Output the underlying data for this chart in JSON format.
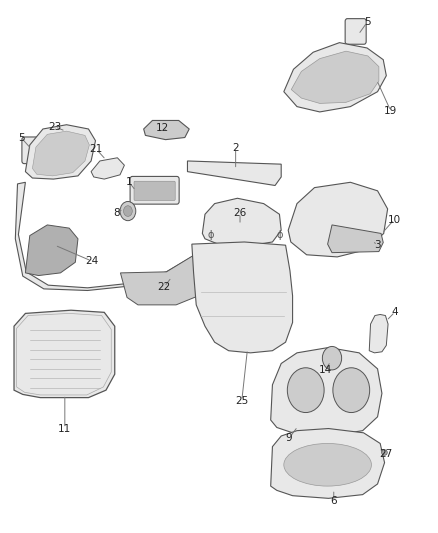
{
  "background_color": "#ffffff",
  "figure_width": 4.38,
  "figure_height": 5.33,
  "dpi": 100,
  "shape_edge_color": "#555555",
  "text_color": "#222222",
  "leader_line_color": "#777777",
  "leader_lw": 0.7,
  "label_fontsize": 7.5,
  "parts_info": [
    [
      5,
      0.838,
      0.958,
      0.818,
      0.935
    ],
    [
      5,
      0.048,
      0.742,
      0.072,
      0.72
    ],
    [
      19,
      0.892,
      0.792,
      0.86,
      0.85
    ],
    [
      2,
      0.538,
      0.722,
      0.538,
      0.682
    ],
    [
      12,
      0.372,
      0.76,
      0.378,
      0.756
    ],
    [
      1,
      0.295,
      0.658,
      0.31,
      0.642
    ],
    [
      8,
      0.265,
      0.6,
      0.282,
      0.608
    ],
    [
      21,
      0.22,
      0.72,
      0.242,
      0.7
    ],
    [
      23,
      0.125,
      0.762,
      0.15,
      0.754
    ],
    [
      10,
      0.9,
      0.588,
      0.872,
      0.562
    ],
    [
      3,
      0.862,
      0.54,
      0.85,
      0.548
    ],
    [
      26,
      0.548,
      0.6,
      0.548,
      0.578
    ],
    [
      22,
      0.375,
      0.462,
      0.392,
      0.48
    ],
    [
      24,
      0.21,
      0.51,
      0.125,
      0.54
    ],
    [
      25,
      0.552,
      0.248,
      0.565,
      0.345
    ],
    [
      9,
      0.66,
      0.178,
      0.68,
      0.2
    ],
    [
      14,
      0.742,
      0.305,
      0.755,
      0.322
    ],
    [
      4,
      0.902,
      0.415,
      0.882,
      0.398
    ],
    [
      6,
      0.762,
      0.06,
      0.762,
      0.082
    ],
    [
      27,
      0.882,
      0.148,
      0.87,
      0.152
    ],
    [
      11,
      0.148,
      0.196,
      0.148,
      0.26
    ]
  ]
}
